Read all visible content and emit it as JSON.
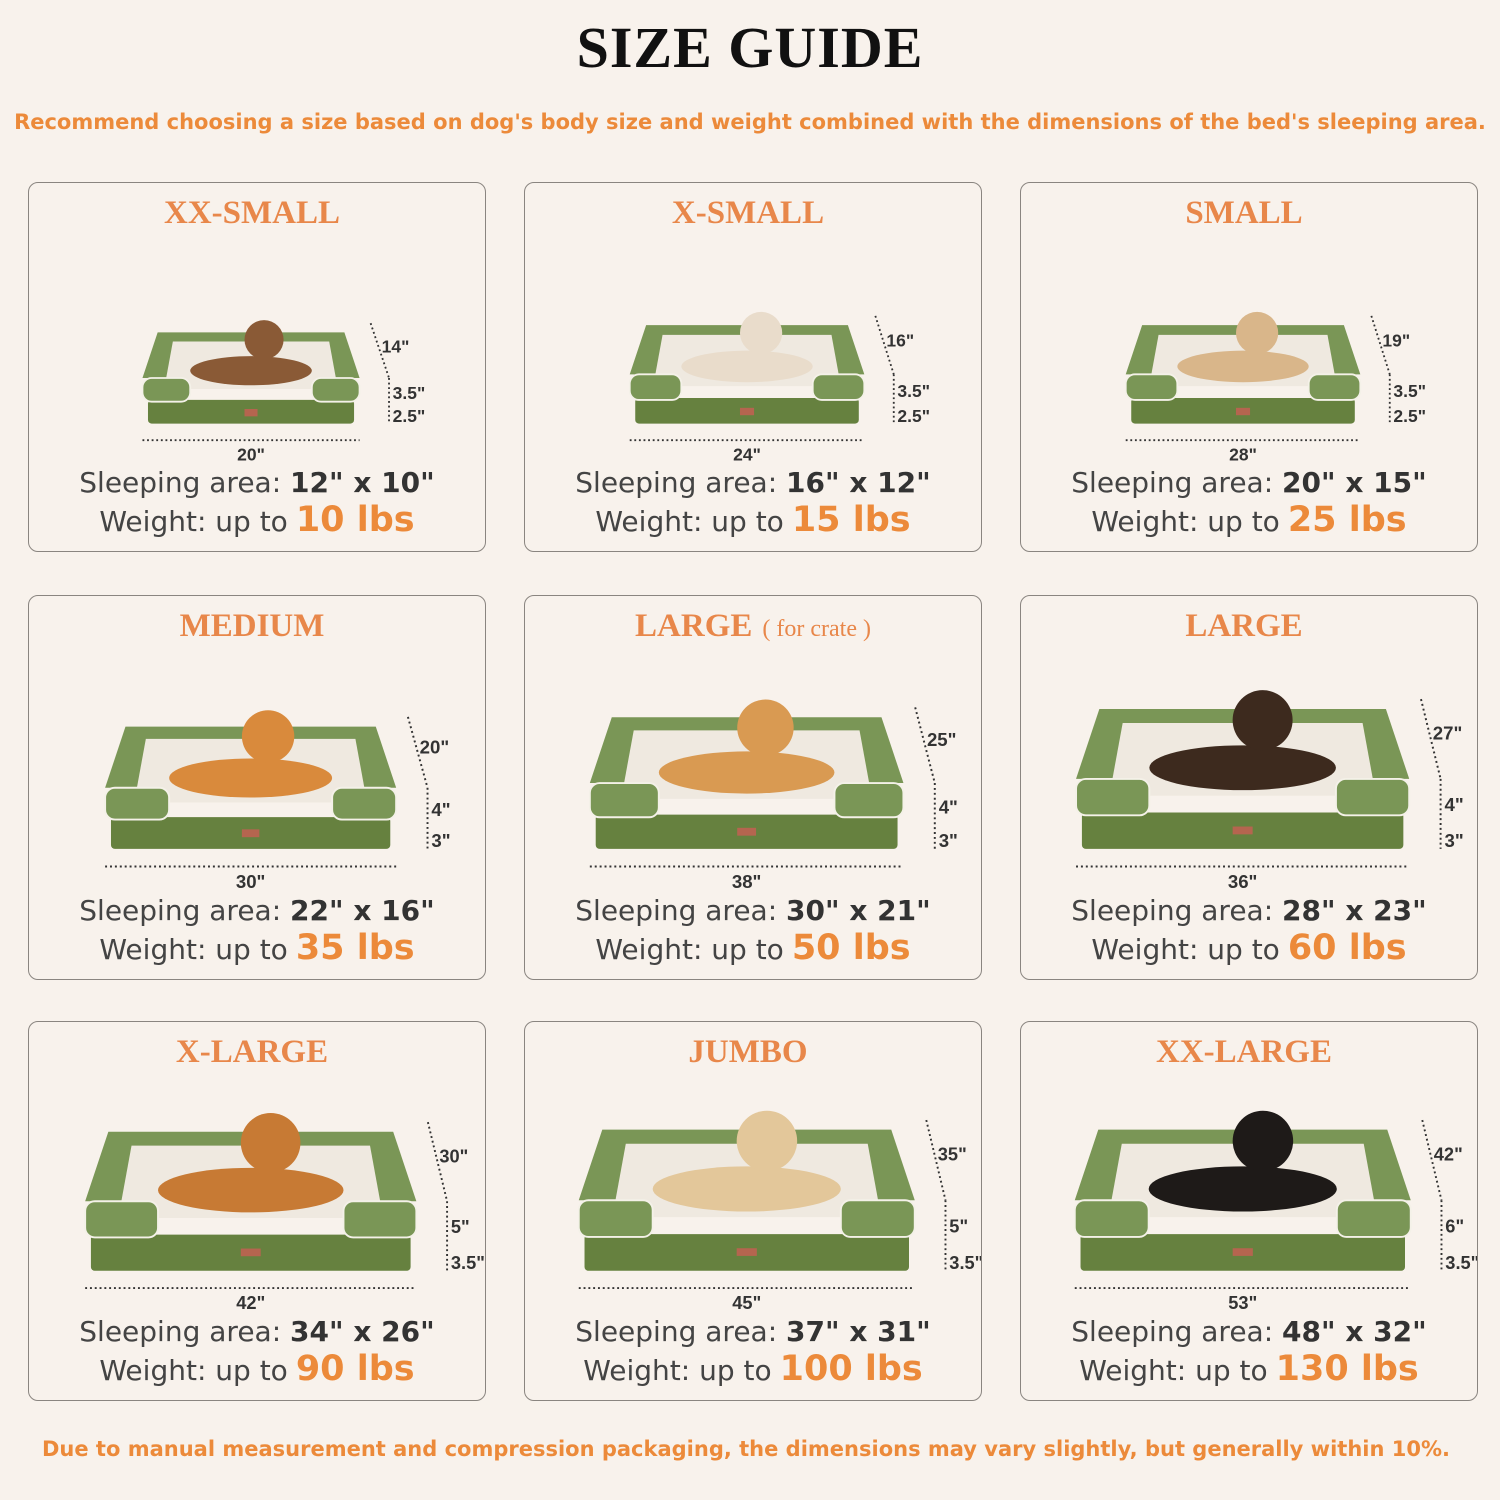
{
  "header": {
    "title": "SIZE GUIDE",
    "subtitle": "Recommend choosing a size based on dog's body size and weight combined with the dimensions of the bed's sleeping area."
  },
  "labels": {
    "sleeping_area": "Sleeping area:",
    "weight": "Weight: up to"
  },
  "colors": {
    "accent": "#ec8a3a",
    "bed_green": "#7a9656",
    "background": "#f8f2ec"
  },
  "sizes": [
    {
      "name": "XX-SMALL",
      "note": "",
      "animal": "cat",
      "width": "20\"",
      "depth": "14\"",
      "cushion": "3.5\"",
      "base": "2.5\"",
      "sleeping_area": "12\" x 10\"",
      "weight": "10 lbs"
    },
    {
      "name": "X-SMALL",
      "note": "",
      "animal": "small dog",
      "width": "24\"",
      "depth": "16\"",
      "cushion": "3.5\"",
      "base": "2.5\"",
      "sleeping_area": "16\" x 12\"",
      "weight": "15 lbs"
    },
    {
      "name": "SMALL",
      "note": "",
      "animal": "french bulldog",
      "width": "28\"",
      "depth": "19\"",
      "cushion": "3.5\"",
      "base": "2.5\"",
      "sleeping_area": "20\" x 15\"",
      "weight": "25 lbs"
    },
    {
      "name": "MEDIUM",
      "note": "",
      "animal": "corgi",
      "width": "30\"",
      "depth": "20\"",
      "cushion": "4\"",
      "base": "3\"",
      "sleeping_area": "22\" x 16\"",
      "weight": "35 lbs"
    },
    {
      "name": "LARGE",
      "note": "( for crate )",
      "animal": "shiba inu",
      "width": "38\"",
      "depth": "25\"",
      "cushion": "4\"",
      "base": "3\"",
      "sleeping_area": "30\" x 21\"",
      "weight": "50 lbs"
    },
    {
      "name": "LARGE",
      "note": "",
      "animal": "border collie",
      "width": "36\"",
      "depth": "27\"",
      "cushion": "4\"",
      "base": "3\"",
      "sleeping_area": "28\" x 23\"",
      "weight": "60 lbs"
    },
    {
      "name": "X-LARGE",
      "note": "",
      "animal": "golden retriever",
      "width": "42\"",
      "depth": "30\"",
      "cushion": "5\"",
      "base": "3.5\"",
      "sleeping_area": "34\" x 26\"",
      "weight": "90 lbs"
    },
    {
      "name": "JUMBO",
      "note": "",
      "animal": "labrador",
      "width": "45\"",
      "depth": "35\"",
      "cushion": "5\"",
      "base": "3.5\"",
      "sleeping_area": "37\" x 31\"",
      "weight": "100 lbs"
    },
    {
      "name": "XX-LARGE",
      "note": "",
      "animal": "rottweiler",
      "width": "53\"",
      "depth": "42\"",
      "cushion": "6\"",
      "base": "3.5\"",
      "sleeping_area": "48\" x 32\"",
      "weight": "130 lbs"
    }
  ],
  "footer": "Due to manual measurement and compression packaging, the dimensions may vary slightly, but generally within 10%."
}
